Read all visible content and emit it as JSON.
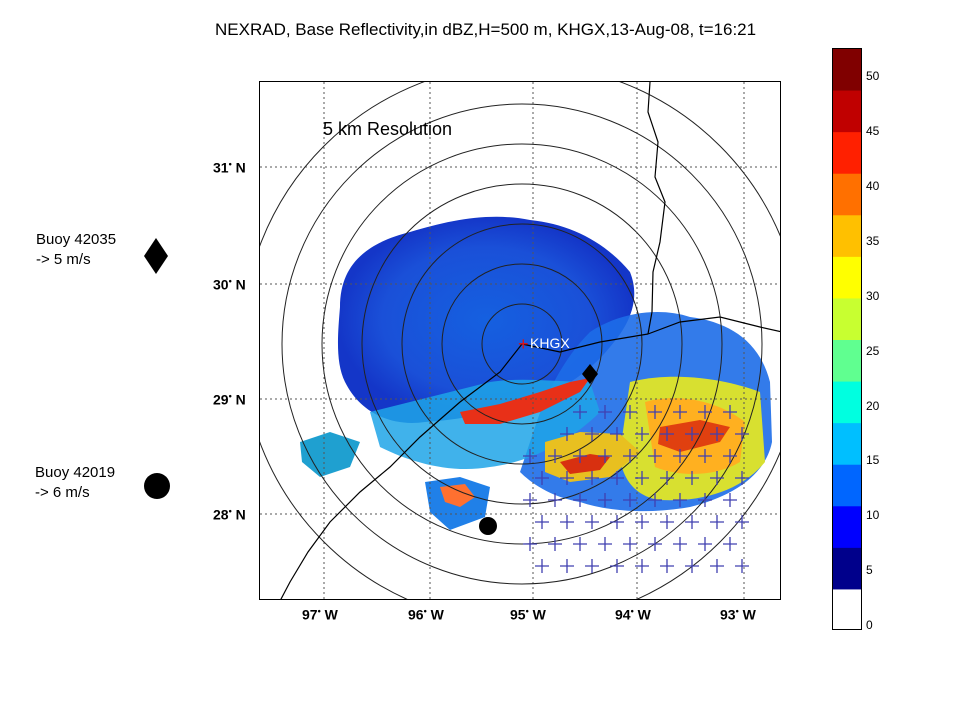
{
  "title": "NEXRAD, Base Reflectivity,in dBZ,H=500 m, KHGX,13-Aug-08, t=16:21",
  "resolution_label": "5 km Resolution",
  "station_label": "KHGX",
  "legend": {
    "buoy_42035": {
      "line1": "Buoy 42035",
      "line2": "->  5 m/s",
      "marker": "diamond-icon"
    },
    "buoy_42019": {
      "line1": "Buoy 42019",
      "line2": "->  6 m/s",
      "marker": "circle-icon"
    }
  },
  "lat_labels": [
    "31",
    "30",
    "29",
    "28"
  ],
  "lat_suffix": "N",
  "lon_labels": [
    "97",
    "96",
    "95",
    "94",
    "93"
  ],
  "lon_suffix": "W",
  "colorbar": {
    "ticks": [
      "50",
      "45",
      "40",
      "35",
      "30",
      "25",
      "20",
      "15",
      "10",
      "5",
      "0"
    ],
    "colors": [
      "#ffffff",
      "#00008b",
      "#0000ff",
      "#0066ff",
      "#00bfff",
      "#00ffe0",
      "#60ff90",
      "#c8ff30",
      "#ffff00",
      "#ffc000",
      "#ff7000",
      "#ff2000",
      "#c00000",
      "#800000"
    ]
  }
}
